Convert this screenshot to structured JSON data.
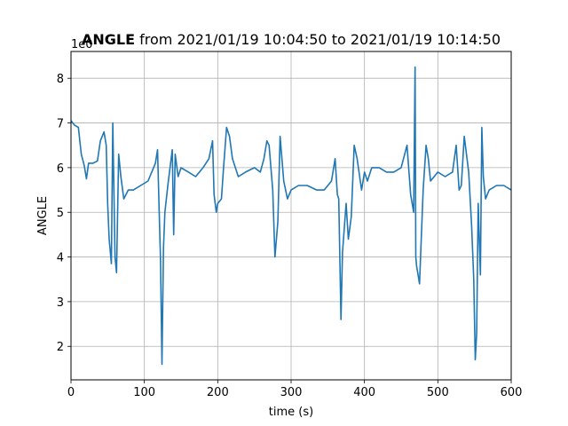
{
  "chart_data": {
    "type": "line",
    "title_bold": "ANGLE",
    "title_rest": " from 2021/01/19 10:04:50 to 2021/01/19 10:14:50",
    "xlabel": "time (s)",
    "ylabel": "ANGLE",
    "offset_label": "1e0",
    "xlim": [
      0,
      600
    ],
    "ylim": [
      1.25,
      8.6
    ],
    "xticks": [
      0,
      100,
      200,
      300,
      400,
      500,
      600
    ],
    "yticks": [
      2,
      3,
      4,
      5,
      6,
      7,
      8
    ],
    "grid": true,
    "line_color": "#1f77b4",
    "series": [
      {
        "x": [
          0,
          5,
          10,
          14,
          18,
          21,
          24,
          30,
          36,
          40,
          45,
          48,
          50,
          52,
          55,
          57,
          60,
          62,
          65,
          68,
          72,
          78,
          85,
          95,
          105,
          115,
          118,
          122,
          124,
          126,
          128,
          132,
          138,
          140,
          142,
          146,
          150,
          160,
          170,
          180,
          188,
          193,
          195,
          198,
          200,
          205,
          208,
          212,
          216,
          220,
          228,
          238,
          250,
          258,
          263,
          267,
          270,
          275,
          278,
          282,
          285,
          290,
          295,
          300,
          310,
          322,
          335,
          345,
          355,
          360,
          363,
          365,
          368,
          370,
          375,
          378,
          382,
          386,
          390,
          396,
          400,
          404,
          410,
          420,
          430,
          440,
          450,
          458,
          463,
          467,
          469,
          470,
          471,
          475,
          480,
          484,
          487,
          490,
          495,
          500,
          510,
          520,
          525,
          529,
          532,
          536,
          542,
          546,
          549,
          551,
          553,
          555,
          558,
          560,
          562,
          565,
          570,
          580,
          590,
          600
        ],
        "y": [
          7.05,
          6.95,
          6.9,
          6.3,
          6.05,
          5.75,
          6.1,
          6.1,
          6.15,
          6.6,
          6.8,
          6.5,
          5.2,
          4.4,
          3.85,
          7.0,
          4.0,
          3.65,
          6.3,
          5.8,
          5.3,
          5.5,
          5.5,
          5.6,
          5.7,
          6.1,
          6.4,
          3.9,
          1.6,
          4.2,
          5.0,
          5.6,
          6.4,
          4.5,
          6.3,
          5.8,
          6.0,
          5.9,
          5.8,
          6.0,
          6.2,
          6.6,
          5.4,
          5.0,
          5.2,
          5.3,
          6.0,
          6.9,
          6.7,
          6.2,
          5.8,
          5.9,
          6.0,
          5.9,
          6.2,
          6.6,
          6.5,
          5.5,
          4.0,
          4.8,
          6.7,
          5.7,
          5.3,
          5.5,
          5.6,
          5.6,
          5.5,
          5.5,
          5.7,
          6.2,
          5.4,
          5.3,
          2.6,
          4.1,
          5.2,
          4.4,
          4.9,
          6.5,
          6.2,
          5.5,
          5.9,
          5.7,
          6.0,
          6.0,
          5.9,
          5.9,
          6.0,
          6.5,
          5.4,
          5.0,
          8.25,
          4.0,
          3.8,
          3.4,
          5.5,
          6.5,
          6.2,
          5.7,
          5.8,
          5.9,
          5.8,
          5.9,
          6.5,
          5.5,
          5.6,
          6.7,
          5.9,
          4.7,
          3.5,
          1.7,
          2.3,
          5.2,
          3.6,
          6.9,
          5.8,
          5.3,
          5.5,
          5.6,
          5.6,
          5.5
        ]
      }
    ]
  }
}
